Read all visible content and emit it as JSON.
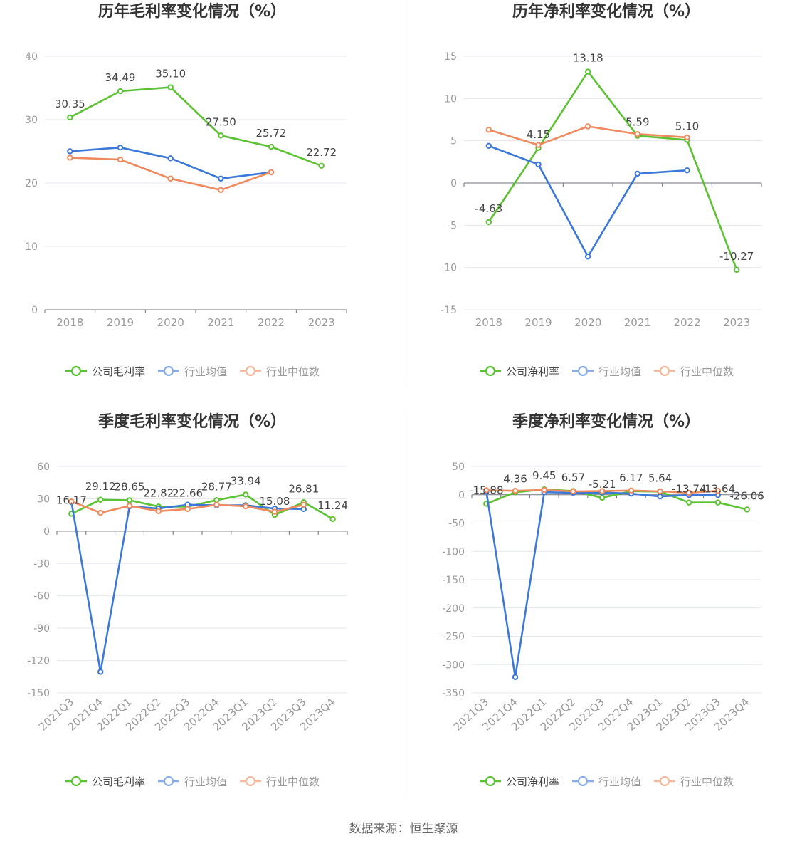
{
  "chart_data": [
    {
      "type": "line",
      "title": "历年毛利率变化情况（%）",
      "categories": [
        "2018",
        "2019",
        "2020",
        "2021",
        "2022",
        "2023"
      ],
      "ylim": [
        0,
        40
      ],
      "yticks": [
        0,
        10,
        20,
        30,
        40
      ],
      "grid": true,
      "legend": "bottom",
      "series": [
        {
          "name": "公司毛利率",
          "color": "#5bc232",
          "values": [
            30.35,
            34.49,
            35.1,
            27.5,
            25.72,
            22.72
          ],
          "labels": [
            "30.35",
            "34.49",
            "35.10",
            "27.50",
            "25.72",
            "22.72"
          ]
        },
        {
          "name": "行业均值",
          "color": "#3b78d8",
          "values": [
            25.0,
            25.6,
            23.9,
            20.7,
            21.7,
            null
          ]
        },
        {
          "name": "行业中位数",
          "color": "#ee8a5e",
          "values": [
            24.0,
            23.7,
            20.7,
            18.9,
            21.7,
            null
          ]
        }
      ]
    },
    {
      "type": "line",
      "title": "历年净利率变化情况（%）",
      "categories": [
        "2018",
        "2019",
        "2020",
        "2021",
        "2022",
        "2023"
      ],
      "ylim": [
        -15,
        15
      ],
      "yticks": [
        -15,
        -10,
        -5,
        0,
        5,
        10,
        15
      ],
      "grid": true,
      "legend": "bottom",
      "series": [
        {
          "name": "公司净利率",
          "color": "#5bc232",
          "values": [
            -4.63,
            4.15,
            13.18,
            5.59,
            5.1,
            -10.27
          ],
          "labels": [
            "-4.63",
            "4.15",
            "13.18",
            "5.59",
            "5.10",
            "-10.27"
          ]
        },
        {
          "name": "行业均值",
          "color": "#3b78d8",
          "values": [
            4.4,
            2.2,
            -8.7,
            1.1,
            1.5,
            null
          ]
        },
        {
          "name": "行业中位数",
          "color": "#ee8a5e",
          "values": [
            6.3,
            4.5,
            6.7,
            5.8,
            5.4,
            null
          ]
        }
      ]
    },
    {
      "type": "line",
      "title": "季度毛利率变化情况（%）",
      "categories": [
        "2021Q3",
        "2021Q4",
        "2022Q1",
        "2022Q2",
        "2022Q3",
        "2022Q4",
        "2023Q1",
        "2023Q2",
        "2023Q3",
        "2023Q4"
      ],
      "ylim": [
        -150,
        60
      ],
      "yticks": [
        -150,
        -120,
        -90,
        -60,
        -30,
        0,
        30,
        60
      ],
      "grid": true,
      "legend": "bottom",
      "series": [
        {
          "name": "公司毛利率",
          "color": "#5bc232",
          "values": [
            16.17,
            29.12,
            28.65,
            22.82,
            22.66,
            28.77,
            33.94,
            15.08,
            26.81,
            11.24
          ],
          "labels": [
            "16.17",
            "29.12",
            "28.65",
            "22.82",
            "22.66",
            "28.77",
            "33.94",
            "15.08",
            "26.81",
            "11.24"
          ]
        },
        {
          "name": "行业均值",
          "color": "#3b78d8",
          "values": [
            27.0,
            -130.5,
            23.0,
            21.0,
            24.5,
            24.0,
            24.0,
            21.0,
            20.5,
            null
          ]
        },
        {
          "name": "行业中位数",
          "color": "#ee8a5e",
          "values": [
            27.5,
            17.0,
            23.5,
            18.5,
            20.5,
            24.5,
            23.0,
            18.0,
            24.5,
            null
          ]
        }
      ]
    },
    {
      "type": "line",
      "title": "季度净利率变化情况（%）",
      "categories": [
        "2021Q3",
        "2021Q4",
        "2022Q1",
        "2022Q2",
        "2022Q3",
        "2022Q4",
        "2023Q1",
        "2023Q2",
        "2023Q3",
        "2023Q4"
      ],
      "ylim": [
        -350,
        50
      ],
      "yticks": [
        -350,
        -300,
        -250,
        -200,
        -150,
        -100,
        -50,
        0,
        50
      ],
      "grid": true,
      "legend": "bottom",
      "series": [
        {
          "name": "公司净利率",
          "color": "#5bc232",
          "values": [
            -15.88,
            4.36,
            9.45,
            6.57,
            -5.21,
            6.17,
            5.64,
            -13.74,
            -13.64,
            -26.06
          ],
          "labels": [
            "-15.88",
            "4.36",
            "9.45",
            "6.57",
            "-5.21",
            "6.17",
            "5.64",
            "-13.74",
            "-13.64",
            "-26.06"
          ]
        },
        {
          "name": "行业均值",
          "color": "#3b78d8",
          "values": [
            6.0,
            -322.0,
            4.5,
            3.5,
            4.0,
            2.0,
            -3.0,
            -0.5,
            -0.5,
            null
          ]
        },
        {
          "name": "行业中位数",
          "color": "#ee8a5e",
          "values": [
            8.0,
            7.0,
            8.5,
            6.0,
            6.5,
            7.5,
            6.0,
            3.5,
            7.0,
            null
          ]
        }
      ]
    }
  ],
  "footer": {
    "source": "数据来源：恒生聚源"
  }
}
